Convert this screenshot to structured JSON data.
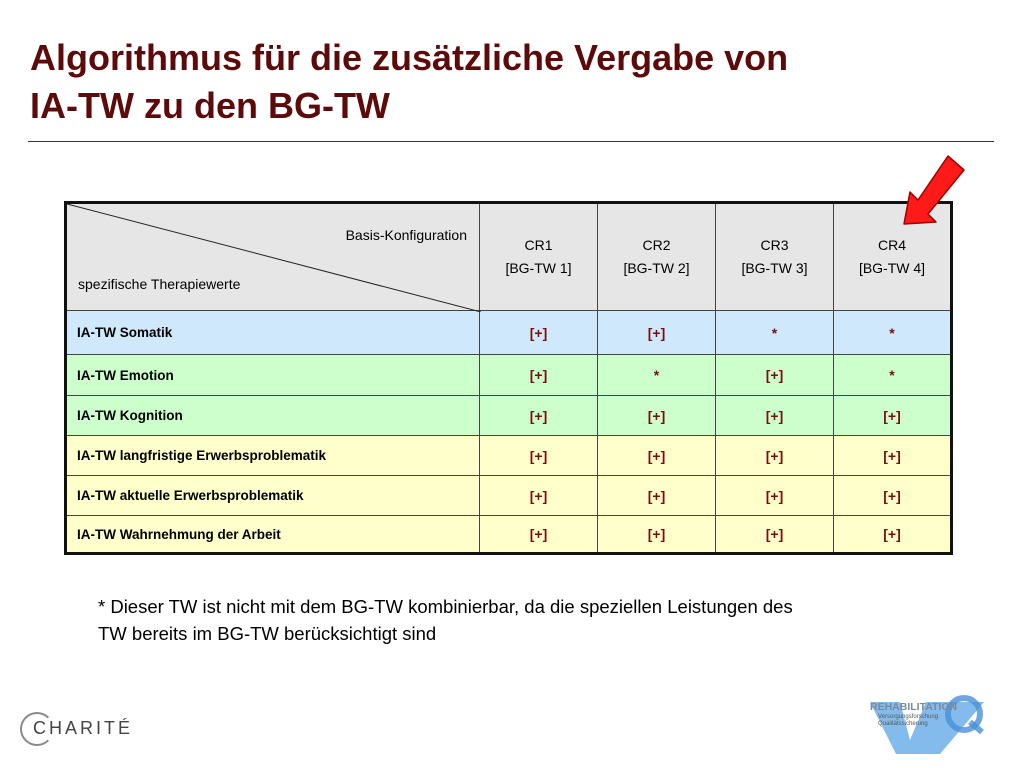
{
  "title": {
    "line1": "Algorithmus für die zusätzliche Vergabe von",
    "line2": "IA-TW zu den BG-TW"
  },
  "table": {
    "corner": {
      "top_right": "Basis-Konfiguration",
      "bottom_left": "spezifische Therapiewerte"
    },
    "columns": [
      {
        "name": "CR1",
        "sub": "[BG-TW 1]"
      },
      {
        "name": "CR2",
        "sub": "[BG-TW 2]"
      },
      {
        "name": "CR3",
        "sub": "[BG-TW 3]"
      },
      {
        "name": "CR4",
        "sub": "[BG-TW 4]"
      }
    ],
    "rows": [
      {
        "label": "IA-TW Somatik",
        "cells": [
          "[+]",
          "[+]",
          "*",
          "*"
        ],
        "color": "#cfe8fb"
      },
      {
        "label": "IA-TW Emotion",
        "cells": [
          "[+]",
          "*",
          "[+]",
          "*"
        ],
        "color": "#ccffcc"
      },
      {
        "label": "IA-TW Kognition",
        "cells": [
          "[+]",
          "[+]",
          "[+]",
          "[+]"
        ],
        "color": "#ccffcc"
      },
      {
        "label": "IA-TW langfristige Erwerbsproblematik",
        "cells": [
          "[+]",
          "[+]",
          "[+]",
          "[+]"
        ],
        "color": "#ffffcc"
      },
      {
        "label": "IA-TW aktuelle Erwerbsproblematik",
        "cells": [
          "[+]",
          "[+]",
          "[+]",
          "[+]"
        ],
        "color": "#ffffcc"
      },
      {
        "label": "IA-TW Wahrnehmung der Arbeit",
        "cells": [
          "[+]",
          "[+]",
          "[+]",
          "[+]"
        ],
        "color": "#ffffcc"
      }
    ]
  },
  "footnote": {
    "line1": "* Dieser TW ist nicht mit dem BG-TW kombinierbar, da die speziellen Leistungen des",
    "line2": "TW bereits im BG-TW berücksichtigt sind"
  },
  "logos": {
    "left": "CHARITÉ",
    "right_top": "REHABILITATION",
    "right_sub1": "Versorgungsforschung",
    "right_sub2": "Qualitätssicherung"
  },
  "colors": {
    "title": "#5c0a0a",
    "cell_text": "#7a0e0e",
    "arrow": "#ff0000",
    "header_bg": "#e6e6e6"
  },
  "icons": {
    "arrow": "red-arrow-icon"
  }
}
